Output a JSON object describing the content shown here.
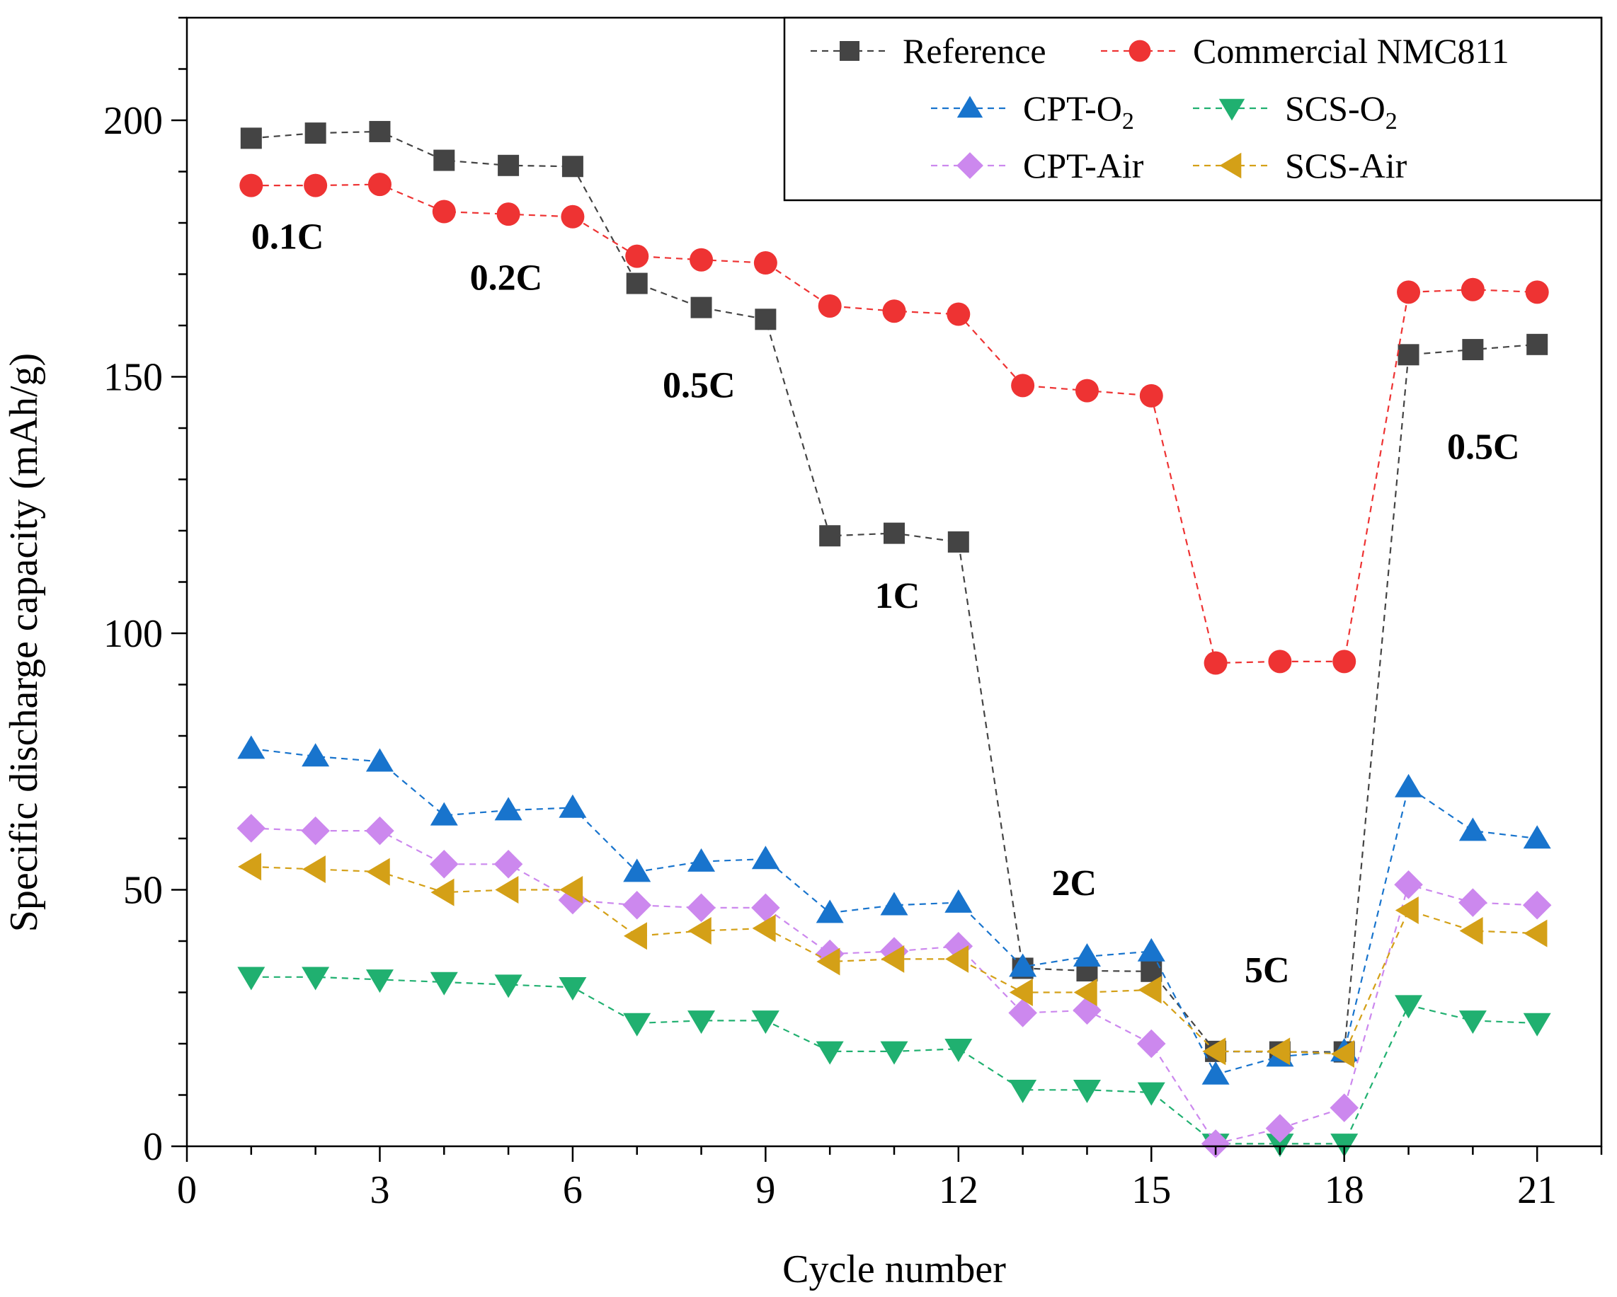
{
  "chart_data": {
    "type": "line",
    "title": "",
    "xlabel": "Cycle number",
    "ylabel": "Specific discharge capacity (mAh/g)",
    "xlim": [
      0,
      22
    ],
    "ylim": [
      0,
      220
    ],
    "x_ticks": [
      0,
      3,
      6,
      9,
      12,
      15,
      18,
      21
    ],
    "y_ticks": [
      0,
      50,
      100,
      150,
      200
    ],
    "grid": false,
    "legend_position": "top-right",
    "x": [
      1,
      2,
      3,
      4,
      5,
      6,
      7,
      8,
      9,
      10,
      11,
      12,
      13,
      14,
      15,
      16,
      17,
      18,
      19,
      20,
      21
    ],
    "series": [
      {
        "name": "Reference",
        "sub": "",
        "color": "#444444",
        "marker": "square",
        "values": [
          196.5,
          197.5,
          197.8,
          192.2,
          191.2,
          191.0,
          168.2,
          163.5,
          161.2,
          119.0,
          119.5,
          117.8,
          34.7,
          34.2,
          34.1,
          18.5,
          18.4,
          18.4,
          154.3,
          155.3,
          156.3
        ]
      },
      {
        "name": "Commercial NMC811",
        "sub": "",
        "color": "#ee3333",
        "marker": "circle",
        "values": [
          187.3,
          187.3,
          187.5,
          182.2,
          181.7,
          181.2,
          173.5,
          172.8,
          172.2,
          163.8,
          162.8,
          162.2,
          148.3,
          147.3,
          146.3,
          94.2,
          94.5,
          94.5,
          166.5,
          167.0,
          166.5
        ]
      },
      {
        "name": "CPT-O",
        "sub": "2",
        "color": "#1874cd",
        "marker": "triangle-up",
        "values": [
          77.5,
          76.0,
          75.0,
          64.5,
          65.5,
          66.0,
          53.5,
          55.5,
          56.0,
          45.5,
          47.0,
          47.5,
          35.0,
          37.0,
          38.0,
          14.0,
          17.5,
          18.5,
          70.0,
          61.5,
          60.0
        ]
      },
      {
        "name": "SCS-O",
        "sub": "2",
        "color": "#20b070",
        "marker": "triangle-down",
        "values": [
          33.0,
          33.0,
          32.5,
          32.0,
          31.5,
          31.0,
          24.0,
          24.5,
          24.5,
          18.5,
          18.5,
          19.0,
          11.0,
          11.0,
          10.5,
          0.5,
          0.5,
          0.5,
          27.5,
          24.5,
          24.0
        ]
      },
      {
        "name": "CPT-Air",
        "sub": "",
        "color": "#cc88ee",
        "marker": "diamond",
        "values": [
          62.0,
          61.5,
          61.5,
          55.0,
          55.0,
          48.0,
          47.0,
          46.5,
          46.5,
          37.5,
          38.0,
          39.0,
          26.0,
          26.5,
          20.0,
          0.5,
          3.5,
          7.5,
          51.0,
          47.5,
          47.0
        ]
      },
      {
        "name": "SCS-Air",
        "sub": "",
        "color": "#d4a017",
        "marker": "triangle-left",
        "values": [
          54.5,
          54.0,
          53.5,
          49.5,
          50.0,
          50.0,
          41.0,
          42.0,
          42.5,
          36.0,
          36.5,
          36.5,
          30.0,
          30.0,
          30.5,
          18.5,
          18.5,
          18.0,
          46.0,
          42.0,
          41.5
        ]
      }
    ],
    "annotations": [
      {
        "text": "0.1C",
        "x": 1.0,
        "y": 175
      },
      {
        "text": "0.2C",
        "x": 4.4,
        "y": 167
      },
      {
        "text": "0.5C",
        "x": 7.4,
        "y": 146
      },
      {
        "text": "1C",
        "x": 10.7,
        "y": 105
      },
      {
        "text": "2C",
        "x": 13.45,
        "y": 49
      },
      {
        "text": "5C",
        "x": 16.45,
        "y": 32
      },
      {
        "text": "0.5C",
        "x": 19.6,
        "y": 134
      }
    ]
  }
}
